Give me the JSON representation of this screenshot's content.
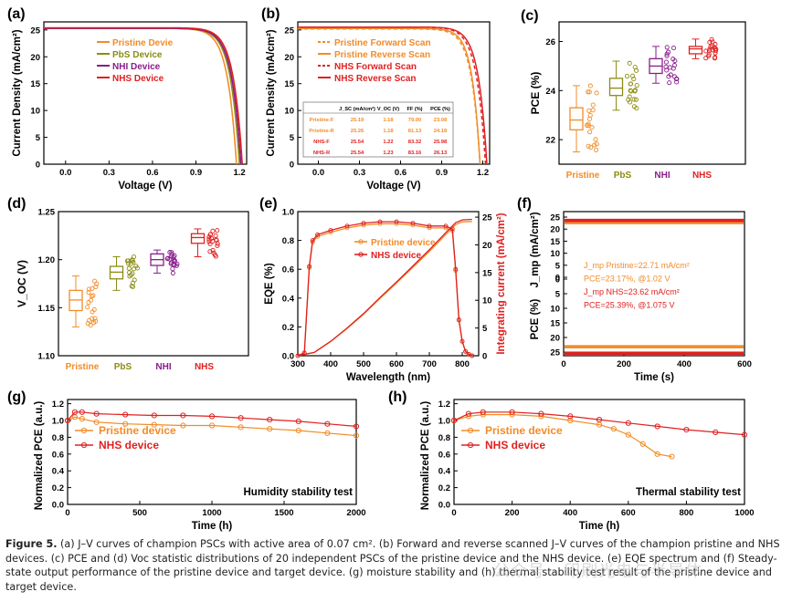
{
  "chart_data": [
    {
      "panel": "(a)",
      "type": "line",
      "xlabel": "Voltage (V)",
      "ylabel": "Current Density (mA/cm²)",
      "xlim": [
        -0.15,
        1.25
      ],
      "ylim": [
        0,
        26.5
      ],
      "xticks": [
        "0.0",
        "0.3",
        "0.6",
        "0.9",
        "1.2"
      ],
      "yticks": [
        "0",
        "5",
        "10",
        "15",
        "20",
        "25"
      ],
      "legend_placement": "top-right",
      "series": [
        {
          "name": "Pristine Devie",
          "color": "#f28c28",
          "jsc": 25.3,
          "voc": 1.18,
          "knee": 0.93
        },
        {
          "name": "PbS Device",
          "color": "#8c8c14",
          "jsc": 25.3,
          "voc": 1.2,
          "knee": 0.95
        },
        {
          "name": "NHI Device",
          "color": "#8a1c8c",
          "jsc": 25.3,
          "voc": 1.21,
          "knee": 0.96
        },
        {
          "name": "NHS Device",
          "color": "#e02020",
          "jsc": 25.4,
          "voc": 1.22,
          "knee": 0.97
        }
      ]
    },
    {
      "panel": "(b)",
      "type": "line",
      "xlabel": "Voltage (V)",
      "ylabel": "Current Density (mA/cm²)",
      "xlim": [
        -0.15,
        1.25
      ],
      "ylim": [
        0,
        26.5
      ],
      "xticks": [
        "0.0",
        "0.3",
        "0.6",
        "0.9",
        "1.2"
      ],
      "yticks": [
        "0",
        "5",
        "10",
        "15",
        "20",
        "25"
      ],
      "legend_placement": "top-right",
      "series": [
        {
          "name": "Pristine Forward Scan",
          "color": "#f28c28",
          "dash": "dash",
          "jsc": 25.19,
          "voc": 1.18,
          "knee": 0.93
        },
        {
          "name": "Pristine Reverse Scan",
          "color": "#f28c28",
          "dash": "solid",
          "jsc": 25.26,
          "voc": 1.18,
          "knee": 0.95
        },
        {
          "name": "NHS Forward Scan",
          "color": "#e02020",
          "dash": "dash",
          "jsc": 25.54,
          "voc": 1.22,
          "knee": 0.96
        },
        {
          "name": "NHS Reverse Scan",
          "color": "#e02020",
          "dash": "solid",
          "jsc": 25.54,
          "voc": 1.23,
          "knee": 0.98
        }
      ],
      "table": {
        "headers": [
          "J_SC (mA/cm²)",
          "V_OC (V)",
          "FF (%)",
          "PCE (%)"
        ],
        "rows": [
          {
            "label": "Pristine-F",
            "color": "#f28c28",
            "values": [
              "25.19",
              "1.18",
              "79.00",
              "23.08"
            ]
          },
          {
            "label": "Pristine-R",
            "color": "#f28c28",
            "values": [
              "25.26",
              "1.18",
              "81.13",
              "24.18"
            ]
          },
          {
            "label": "NHS-F",
            "color": "#e02020",
            "values": [
              "25.54",
              "1.22",
              "83.32",
              "25.98"
            ]
          },
          {
            "label": "NHS-R",
            "color": "#e02020",
            "values": [
              "25.54",
              "1.23",
              "83.16",
              "26.13"
            ]
          }
        ]
      }
    },
    {
      "panel": "(c)",
      "type": "box",
      "ylabel": "PCE (%)",
      "ylim": [
        21,
        26.8
      ],
      "yticks": [
        "22",
        "24",
        "26"
      ],
      "categories": [
        "Pristine",
        "PbS",
        "NHI",
        "NHS"
      ],
      "colors": [
        "#f28c28",
        "#8c8c14",
        "#8a1c8c",
        "#e02020"
      ],
      "boxes": [
        {
          "q1": 22.4,
          "median": 22.8,
          "q3": 23.3,
          "min": 21.5,
          "max": 24.2
        },
        {
          "q1": 23.8,
          "median": 24.1,
          "q3": 24.5,
          "min": 23.2,
          "max": 25.2
        },
        {
          "q1": 24.7,
          "median": 25.0,
          "q3": 25.3,
          "min": 24.3,
          "max": 25.8
        },
        {
          "q1": 25.5,
          "median": 25.7,
          "q3": 25.8,
          "min": 25.3,
          "max": 26.1
        }
      ]
    },
    {
      "panel": "(d)",
      "type": "box",
      "ylabel": "V_OC (V)",
      "ylim": [
        1.1,
        1.25
      ],
      "yticks": [
        "1.10",
        "1.15",
        "1.20",
        "1.25"
      ],
      "categories": [
        "Pristine",
        "PbS",
        "NHI",
        "NHS"
      ],
      "colors": [
        "#f28c28",
        "#8c8c14",
        "#8a1c8c",
        "#e02020"
      ],
      "boxes": [
        {
          "q1": 1.147,
          "median": 1.158,
          "q3": 1.168,
          "min": 1.13,
          "max": 1.183
        },
        {
          "q1": 1.18,
          "median": 1.187,
          "q3": 1.193,
          "min": 1.168,
          "max": 1.203
        },
        {
          "q1": 1.194,
          "median": 1.2,
          "q3": 1.206,
          "min": 1.186,
          "max": 1.21
        },
        {
          "q1": 1.217,
          "median": 1.223,
          "q3": 1.227,
          "min": 1.203,
          "max": 1.232
        }
      ]
    },
    {
      "panel": "(e)",
      "type": "line",
      "xlabel": "Wavelength (nm)",
      "ylabel": "EQE (%)",
      "ylabel_right": "Integrating current (mA/cm²)",
      "xlim": [
        300,
        850
      ],
      "ylim": [
        0,
        1.0
      ],
      "ylim_right": [
        0,
        26
      ],
      "xticks": [
        "300",
        "400",
        "500",
        "600",
        "700",
        "800"
      ],
      "yticks": [
        "0.0",
        "0.2",
        "0.4",
        "0.6",
        "0.8",
        "1.0"
      ],
      "yticks_right": [
        "0",
        "5",
        "10",
        "15",
        "20",
        "25"
      ],
      "legend_placement": "center",
      "series": [
        {
          "name": "Pristine device",
          "color": "#f28c28"
        },
        {
          "name": "NHS device",
          "color": "#e02020"
        }
      ],
      "eqe_x": [
        300,
        320,
        335,
        345,
        360,
        400,
        450,
        500,
        550,
        600,
        650,
        700,
        750,
        770,
        780,
        790,
        800,
        810,
        820,
        830
      ],
      "eqe_y": [
        0.0,
        0.02,
        0.62,
        0.8,
        0.84,
        0.87,
        0.9,
        0.92,
        0.93,
        0.93,
        0.92,
        0.9,
        0.9,
        0.88,
        0.6,
        0.25,
        0.1,
        0.03,
        0.01,
        0.0
      ],
      "integrated_x": [
        300,
        350,
        400,
        450,
        500,
        550,
        600,
        650,
        700,
        750,
        780,
        800,
        830
      ],
      "integrated_y": [
        0,
        0.6,
        2.6,
        5.0,
        7.6,
        10.5,
        13.3,
        16.2,
        19.1,
        22.2,
        24.0,
        24.5,
        24.6
      ]
    },
    {
      "panel": "(f)",
      "type": "line",
      "xlabel": "Time (s)",
      "ylabel_upper": "J_mp (mA/cm²)",
      "ylabel_lower": "PCE (%)",
      "xlim": [
        0,
        600
      ],
      "xticks": [
        "0",
        "200",
        "400",
        "600"
      ],
      "yticks_upper": [
        "0",
        "5",
        "10",
        "15",
        "20",
        "25"
      ],
      "yticks_lower": [
        "0",
        "5",
        "10",
        "15",
        "20",
        "25"
      ],
      "annotations": [
        {
          "text": "J_mp Pristine=22.71 mA/cm²",
          "color": "#f28c28"
        },
        {
          "text": "PCE=23.17%, @1.02 V",
          "color": "#f28c28"
        },
        {
          "text": "J_mp NHS=23.62 mA/cm²",
          "color": "#e02020"
        },
        {
          "text": "PCE=25.39%, @1.075 V",
          "color": "#e02020"
        }
      ],
      "series": [
        {
          "name": "Pristine",
          "color": "#f28c28",
          "jmp": 22.71,
          "pce": 23.17
        },
        {
          "name": "NHS",
          "color": "#e02020",
          "jmp": 23.62,
          "pce": 25.39
        }
      ]
    },
    {
      "panel": "(g)",
      "type": "line",
      "xlabel": "Time (h)",
      "ylabel": "Normalized PCE (a.u.)",
      "annotation": "Humidity stability test",
      "xlim": [
        0,
        2000
      ],
      "ylim": [
        0,
        1.25
      ],
      "xticks": [
        "0",
        "500",
        "1000",
        "1500",
        "2000"
      ],
      "yticks": [
        "0.0",
        "0.2",
        "0.4",
        "0.6",
        "0.8",
        "1.0",
        "1.2"
      ],
      "legend_placement": "upper-left",
      "series": [
        {
          "name": "Pristine device",
          "color": "#f28c28",
          "x": [
            0,
            50,
            100,
            200,
            400,
            600,
            800,
            1000,
            1200,
            1400,
            1600,
            1800,
            2000
          ],
          "y": [
            1.0,
            1.04,
            1.02,
            0.98,
            0.96,
            0.95,
            0.94,
            0.94,
            0.92,
            0.9,
            0.88,
            0.85,
            0.82
          ]
        },
        {
          "name": "NHS device",
          "color": "#e02020",
          "x": [
            0,
            50,
            100,
            200,
            400,
            600,
            800,
            1000,
            1200,
            1400,
            1600,
            1800,
            2000
          ],
          "y": [
            1.0,
            1.1,
            1.1,
            1.08,
            1.07,
            1.06,
            1.06,
            1.05,
            1.03,
            1.01,
            0.99,
            0.96,
            0.93
          ]
        }
      ]
    },
    {
      "panel": "(h)",
      "type": "line",
      "xlabel": "Time (h)",
      "ylabel": "Normalized PCE (a.u.)",
      "annotation": "Thermal stability test",
      "xlim": [
        0,
        1000
      ],
      "ylim": [
        0,
        1.25
      ],
      "xticks": [
        "0",
        "200",
        "400",
        "600",
        "800",
        "1000"
      ],
      "yticks": [
        "0.0",
        "0.2",
        "0.4",
        "0.6",
        "0.8",
        "1.0",
        "1.2"
      ],
      "legend_placement": "upper-left",
      "series": [
        {
          "name": "Pristine device",
          "color": "#f28c28",
          "x": [
            0,
            50,
            100,
            200,
            300,
            400,
            500,
            550,
            600,
            650,
            700,
            750
          ],
          "y": [
            1.0,
            1.05,
            1.07,
            1.07,
            1.05,
            1.0,
            0.95,
            0.9,
            0.83,
            0.72,
            0.6,
            0.57
          ]
        },
        {
          "name": "NHS device",
          "color": "#e02020",
          "x": [
            0,
            50,
            100,
            200,
            300,
            400,
            500,
            600,
            700,
            800,
            900,
            1000
          ],
          "y": [
            1.0,
            1.08,
            1.1,
            1.1,
            1.08,
            1.05,
            1.01,
            0.97,
            0.93,
            0.89,
            0.86,
            0.83
          ]
        }
      ]
    }
  ],
  "caption": {
    "label": "Figure 5.",
    "text": "(a) J–V curves of champion PSCs with active area of 0.07 cm². (b) Forward and reverse scanned J–V curves of the champion pristine and NHS devices. (c) PCE and (d) Voc statistic distributions of 20 independent PSCs of the pristine device and the NHS device. (e) EQE spectrum and (f) Steady-state output performance of the pristine device and target device. (g) moisture stability and (h) thermal stability test result of the pristine device and target device."
  },
  "watermark": "公众号 · 印刷光电与半导体"
}
